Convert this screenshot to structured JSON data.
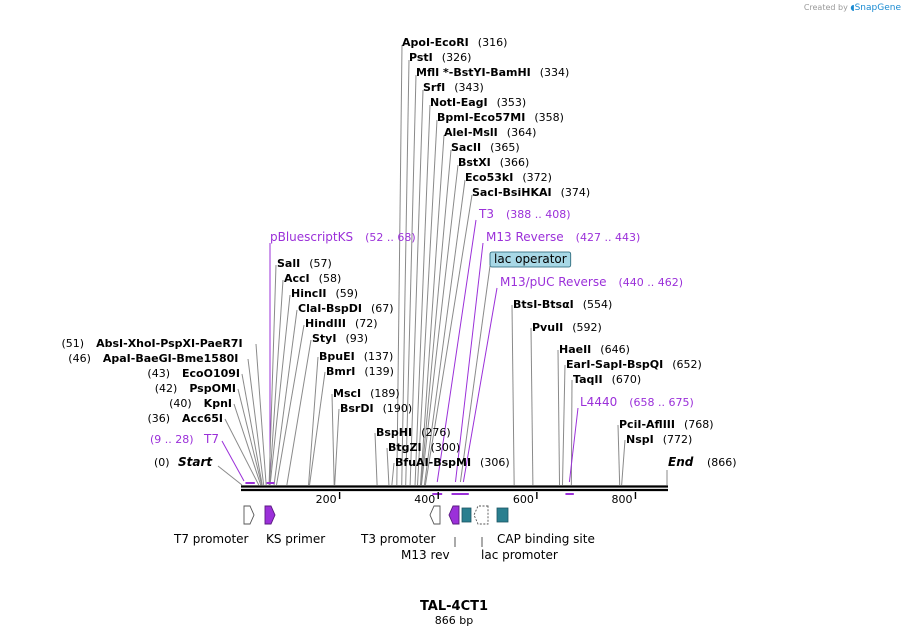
{
  "credit": {
    "prefix": "Created by",
    "brand": "SnapGene"
  },
  "plasmid": {
    "name": "TAL-4CT1",
    "length_label": "866 bp",
    "length": 866
  },
  "colors": {
    "enzyme": "#000000",
    "feature": "#9b30d9",
    "lead": "#8a8a8a",
    "backbone": "#000000",
    "teal": "#2a7f8f",
    "badge": "#a8d8e6"
  },
  "axis_ticks": [
    "200",
    "400",
    "600",
    "800"
  ],
  "start_label": {
    "pos": "(0)",
    "name": "Start"
  },
  "end_label": {
    "name": "End",
    "pos": "(866)"
  },
  "top_enzymes": [
    {
      "parts": [
        "ApoI",
        "EcoRI"
      ],
      "pos": "(316)"
    },
    {
      "parts": [
        "PstI"
      ],
      "pos": "(326)"
    },
    {
      "parts": [
        "MflI *",
        "BstYI",
        "BamHI"
      ],
      "pos": "(334)"
    },
    {
      "parts": [
        "SrfI"
      ],
      "pos": "(343)"
    },
    {
      "parts": [
        "NotI",
        "EagI"
      ],
      "pos": "(353)"
    },
    {
      "parts": [
        "BpmI",
        "Eco57MI"
      ],
      "pos": "(358)"
    },
    {
      "parts": [
        "AleI",
        "MslI"
      ],
      "pos": "(364)"
    },
    {
      "parts": [
        "SacII"
      ],
      "pos": "(365)"
    },
    {
      "parts": [
        "BstXI"
      ],
      "pos": "(366)"
    },
    {
      "parts": [
        "Eco53kI"
      ],
      "pos": "(372)"
    },
    {
      "parts": [
        "SacI",
        "BsiHKAI"
      ],
      "pos": "(374)"
    }
  ],
  "top_features": [
    {
      "name": "T3",
      "range": "(388 .. 408)"
    },
    {
      "name": "M13 Reverse",
      "range": "(427 .. 443)"
    },
    {
      "name": "lac operator",
      "badge": true
    },
    {
      "name": "M13/pUC Reverse",
      "range": "(440 .. 462)"
    }
  ],
  "left_feature": {
    "name": "pBluescriptKS",
    "range": "(52 .. 68)"
  },
  "mid_enzymes": [
    {
      "parts": [
        "SalI"
      ],
      "pos": "(57)"
    },
    {
      "parts": [
        "AccI"
      ],
      "pos": "(58)"
    },
    {
      "parts": [
        "HincII"
      ],
      "pos": "(59)"
    },
    {
      "parts": [
        "ClaI",
        "BspDI"
      ],
      "pos": "(67)"
    },
    {
      "parts": [
        "HindIII"
      ],
      "pos": "(72)"
    },
    {
      "parts": [
        "StyI"
      ],
      "pos": "(93)"
    }
  ],
  "left_enzymes": [
    {
      "parts": [
        "AbsI",
        "XhoI",
        "PspXI",
        "PaeR7I"
      ],
      "pos": "(51)"
    },
    {
      "parts": [
        "ApaI",
        "BaeGI",
        "Bme1580I"
      ],
      "pos": "(46)"
    },
    {
      "parts": [
        "EcoO109I"
      ],
      "pos": "(43)"
    },
    {
      "parts": [
        "PspOMI"
      ],
      "pos": "(42)"
    },
    {
      "parts": [
        "KpnI"
      ],
      "pos": "(40)"
    },
    {
      "parts": [
        "Acc65I"
      ],
      "pos": "(36)"
    }
  ],
  "t7_feature": {
    "range": "(9 .. 28)",
    "name": "T7"
  },
  "center_enzymes": [
    {
      "parts": [
        "BpuEI"
      ],
      "pos": "(137)"
    },
    {
      "parts": [
        "BmrI"
      ],
      "pos": "(139)"
    },
    {
      "parts": [
        "MscI"
      ],
      "pos": "(189)"
    },
    {
      "parts": [
        "BsrDI"
      ],
      "pos": "(190)"
    },
    {
      "parts": [
        "BspHI"
      ],
      "pos": "(276)"
    },
    {
      "parts": [
        "BtgZI"
      ],
      "pos": "(300)"
    },
    {
      "parts": [
        "BfuAI",
        "BspMI"
      ],
      "pos": "(306)"
    }
  ],
  "right_enzymes": [
    {
      "parts": [
        "BtsI",
        "BtsαI"
      ],
      "pos": "(554)"
    },
    {
      "parts": [
        "PvuII"
      ],
      "pos": "(592)"
    },
    {
      "parts": [
        "HaeII"
      ],
      "pos": "(646)"
    },
    {
      "parts": [
        "EarI",
        "SapI",
        "BspQI"
      ],
      "pos": "(652)"
    },
    {
      "parts": [
        "TaqII"
      ],
      "pos": "(670)"
    },
    {
      "parts": [
        "PciI",
        "AflIII"
      ],
      "pos": "(768)"
    },
    {
      "parts": [
        "NspI"
      ],
      "pos": "(772)"
    }
  ],
  "right_feature": {
    "name": "L4440",
    "range": "(658 .. 675)"
  },
  "bottom_features": [
    {
      "name": "T7 promoter"
    },
    {
      "name": "KS primer"
    },
    {
      "name": "T3 promoter"
    },
    {
      "name": "M13 rev"
    },
    {
      "name": "lac promoter"
    },
    {
      "name": "CAP binding site"
    }
  ]
}
